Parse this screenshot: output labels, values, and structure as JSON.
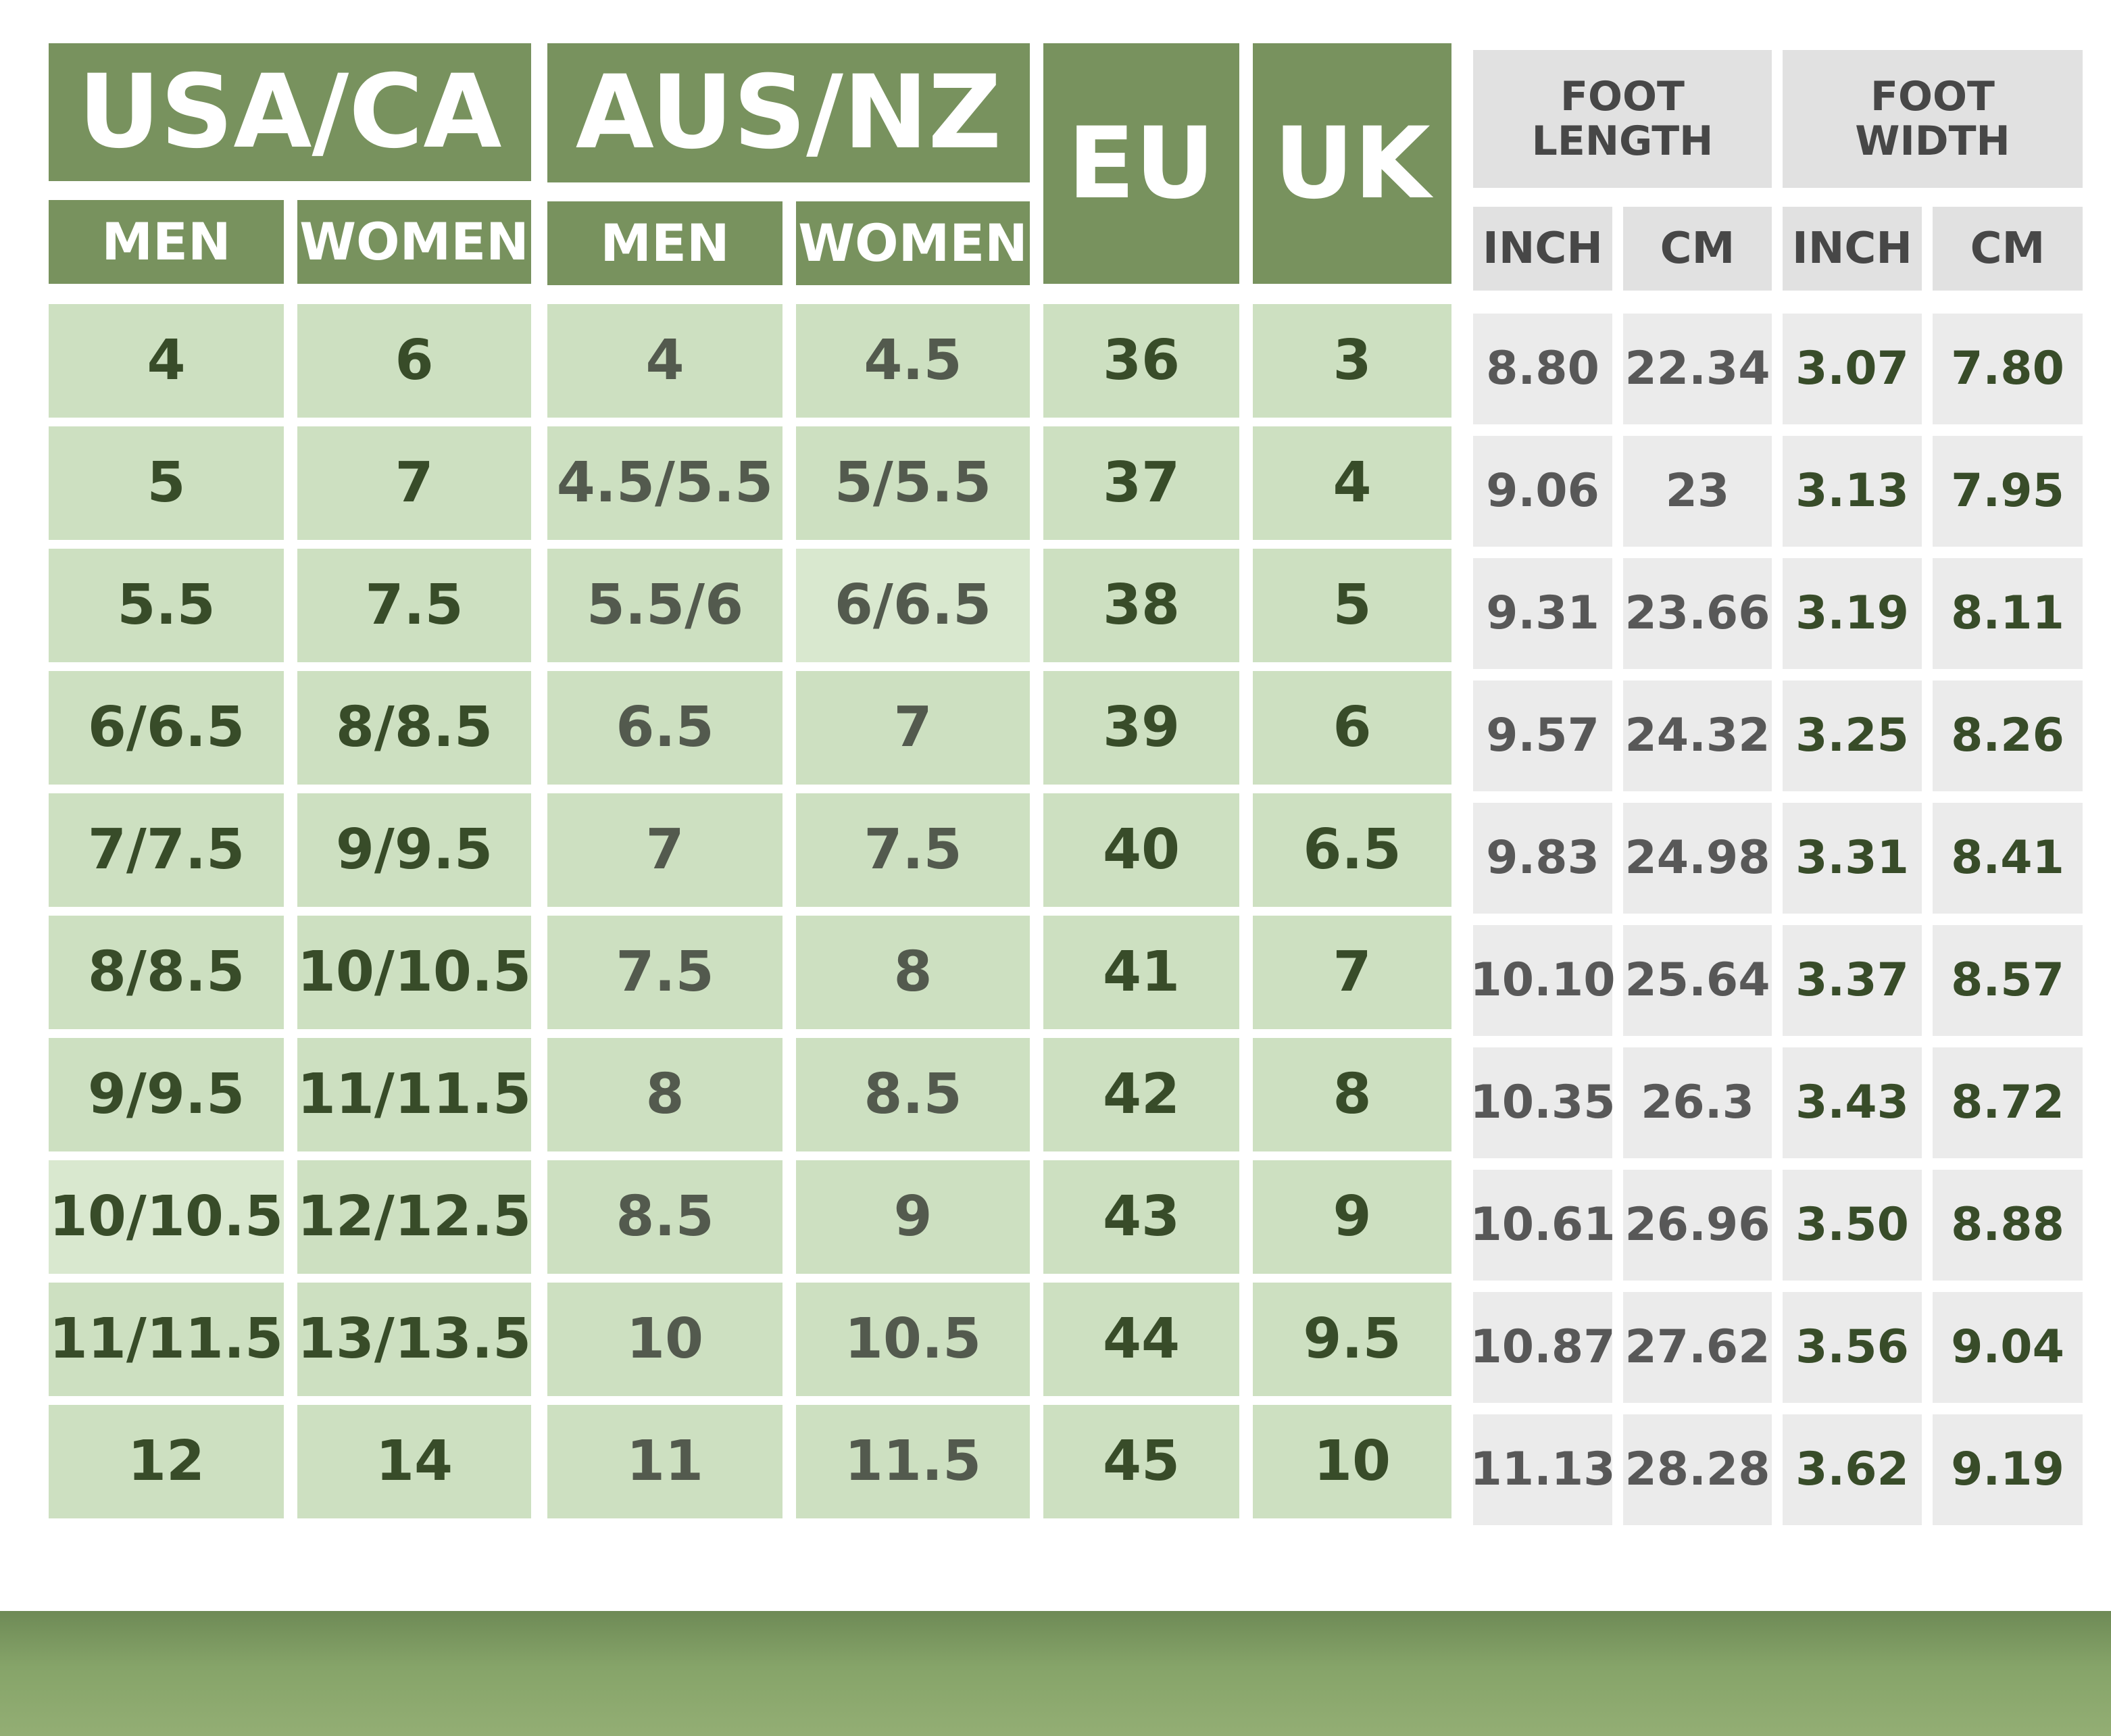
{
  "headers": {
    "usa_ca": "USA/CA",
    "aus_nz": "AUS/NZ",
    "eu": "EU",
    "uk": "UK",
    "foot_length": "FOOT\nLENGTH",
    "foot_width": "FOOT\nWIDTH",
    "men": "MEN",
    "women": "WOMEN",
    "inch": "INCH",
    "cm": "CM"
  },
  "colors": {
    "header_green": "#78925e",
    "cell_green": "#cde0c1",
    "text_dark_green": "#384c29",
    "cell_gray": "#ebebeb",
    "header_gray": "#e1e1e1"
  },
  "rows": [
    [
      "4",
      "6",
      "4",
      "4.5",
      "36",
      "3",
      "8.80",
      "22.34",
      "3.07",
      "7.80"
    ],
    [
      "5",
      "7",
      "4.5/5.5",
      "5/5.5",
      "37",
      "4",
      "9.06",
      "23",
      "3.13",
      "7.95"
    ],
    [
      "5.5",
      "7.5",
      "5.5/6",
      "6/6.5",
      "38",
      "5",
      "9.31",
      "23.66",
      "3.19",
      "8.11"
    ],
    [
      "6/6.5",
      "8/8.5",
      "6.5",
      "7",
      "39",
      "6",
      "9.57",
      "24.32",
      "3.25",
      "8.26"
    ],
    [
      "7/7.5",
      "9/9.5",
      "7",
      "7.5",
      "40",
      "6.5",
      "9.83",
      "24.98",
      "3.31",
      "8.41"
    ],
    [
      "8/8.5",
      "10/10.5",
      "7.5",
      "8",
      "41",
      "7",
      "10.10",
      "25.64",
      "3.37",
      "8.57"
    ],
    [
      "9/9.5",
      "11/11.5",
      "8",
      "8.5",
      "42",
      "8",
      "10.35",
      "26.3",
      "3.43",
      "8.72"
    ],
    [
      "10/10.5",
      "12/12.5",
      "8.5",
      "9",
      "43",
      "9",
      "10.61",
      "26.96",
      "3.50",
      "8.88"
    ],
    [
      "11/11.5",
      "13/13.5",
      "10",
      "10.5",
      "44",
      "9.5",
      "10.87",
      "27.62",
      "3.56",
      "9.04"
    ],
    [
      "12",
      "14",
      "11",
      "11.5",
      "45",
      "10",
      "11.13",
      "28.28",
      "3.62",
      "9.19"
    ]
  ]
}
